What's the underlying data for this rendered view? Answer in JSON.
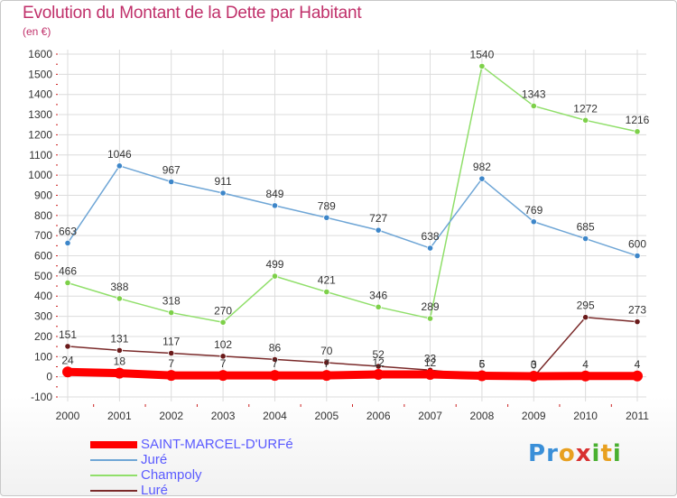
{
  "header": {
    "title": "Evolution du Montant de la Dette par Habitant",
    "unit": "(en €)"
  },
  "logo": {
    "text": "Proxiti"
  },
  "colors": {
    "grid": "#dcdcdc",
    "axis_tick": "#cc2222",
    "title": "#c0306a",
    "legend_text": "#5a5aff"
  },
  "chart_data": {
    "type": "line",
    "title": "Evolution du Montant de la Dette par Habitant",
    "subtitle": "(en €)",
    "xlabel": "",
    "ylabel": "",
    "x": [
      "2000",
      "2001",
      "2002",
      "2003",
      "2004",
      "2005",
      "2006",
      "2007",
      "2008",
      "2009",
      "2010",
      "2011"
    ],
    "ylim": [
      -100,
      1600
    ],
    "yticks": [
      -100,
      0,
      100,
      200,
      300,
      400,
      500,
      600,
      700,
      800,
      900,
      1000,
      1100,
      1200,
      1300,
      1400,
      1500,
      1600
    ],
    "grid": true,
    "legend_position": "bottom-left",
    "series": [
      {
        "name": "SAINT-MARCEL-D'URFé",
        "color": "#ff0000",
        "marker": "#ff0000",
        "values": [
          24,
          18,
          7,
          7,
          7,
          7,
          12,
          12,
          5,
          3,
          4,
          4
        ],
        "labels": [
          "24",
          "18",
          "7",
          "7",
          "7",
          "7",
          "12",
          "12",
          "5",
          "3",
          "4",
          "4"
        ]
      },
      {
        "name": "Juré",
        "color": "#6fa6d6",
        "marker": "#3d86c9",
        "values": [
          663,
          1046,
          967,
          911,
          849,
          789,
          727,
          638,
          982,
          769,
          685,
          600
        ],
        "labels": [
          "663",
          "1046",
          "967",
          "911",
          "849",
          "789",
          "727",
          "638",
          "982",
          "769",
          "685",
          "600"
        ]
      },
      {
        "name": "Champoly",
        "color": "#90df6a",
        "marker": "#7dd049",
        "values": [
          466,
          388,
          318,
          270,
          499,
          421,
          346,
          289,
          1540,
          1343,
          1272,
          1216
        ],
        "labels": [
          "466",
          "388",
          "318",
          "270",
          "499",
          "421",
          "346",
          "289",
          "1540",
          "1343",
          "1272",
          "1216"
        ]
      },
      {
        "name": "Luré",
        "color": "#7a2a2a",
        "marker": "#6a1a1a",
        "values": [
          151,
          131,
          117,
          102,
          86,
          70,
          52,
          33,
          6,
          0,
          295,
          273
        ],
        "labels": [
          "151",
          "131",
          "117",
          "102",
          "86",
          "70",
          "52",
          "33",
          "6",
          "0",
          "295",
          "273"
        ]
      }
    ]
  }
}
